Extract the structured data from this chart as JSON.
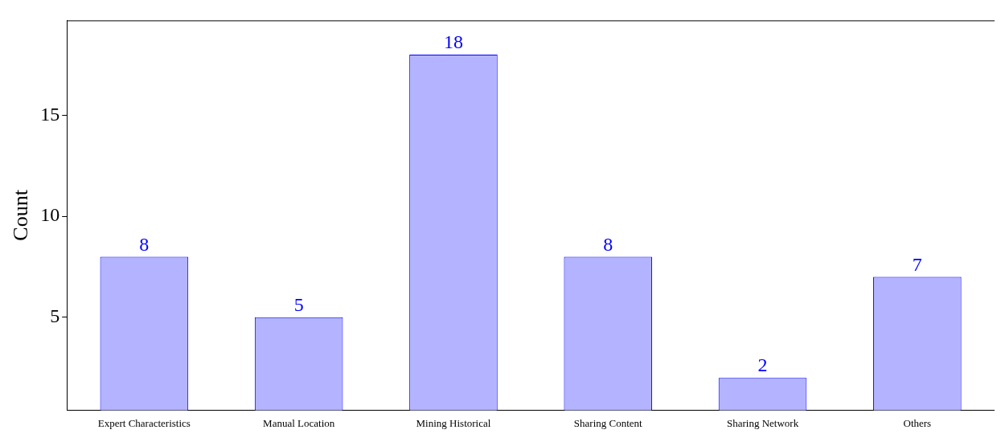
{
  "chart_data": {
    "type": "bar",
    "ylabel": "Count",
    "categories": [
      "Expert Characteristics",
      "Manual Location",
      "Mining Historical",
      "Sharing Content",
      "Sharing Network",
      "Others"
    ],
    "values": [
      8,
      5,
      18,
      8,
      2,
      7
    ],
    "color": "#b3b3ff",
    "data_labels": true,
    "grid": false,
    "legend": false,
    "ylim": [
      0.4,
      19.7
    ],
    "yticks": [
      5,
      10,
      15
    ]
  }
}
